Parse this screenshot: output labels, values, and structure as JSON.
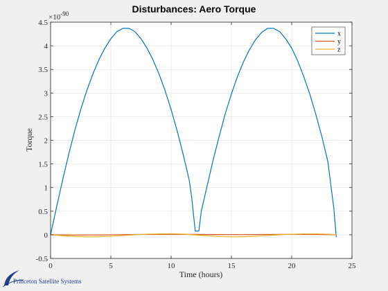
{
  "chart_data": {
    "type": "line",
    "title": "Disturbances: Aero Torque",
    "xlabel": "Time (hours)",
    "ylabel": "Torque",
    "y_exponent_label": "×10",
    "y_exponent_value": "-90",
    "xlim": [
      0,
      25
    ],
    "ylim": [
      -0.5,
      4.5
    ],
    "xticks": [
      0,
      5,
      10,
      15,
      20,
      25
    ],
    "yticks": [
      -0.5,
      0,
      0.5,
      1,
      1.5,
      2,
      2.5,
      3,
      3.5,
      4,
      4.5
    ],
    "xtick_labels": [
      "0",
      "5",
      "10",
      "15",
      "20",
      "25"
    ],
    "ytick_labels": [
      "-0.5",
      "0",
      "0.5",
      "1",
      "1.5",
      "2",
      "2.5",
      "3",
      "3.5",
      "4",
      "4.5"
    ],
    "grid": true,
    "legend_position": "top-right",
    "series": [
      {
        "name": "x",
        "color": "#0072bd",
        "x": [
          0,
          0.5,
          1,
          1.5,
          2,
          2.5,
          3,
          3.5,
          4,
          4.5,
          5,
          5.5,
          6,
          6.5,
          7,
          7.5,
          8,
          8.5,
          9,
          9.5,
          10,
          10.5,
          11,
          11.5,
          11.7,
          12.0,
          12.3,
          12.5,
          13,
          13.5,
          14,
          14.5,
          15,
          15.5,
          16,
          16.5,
          17,
          17.5,
          18,
          18.5,
          19,
          19.5,
          20,
          20.5,
          21,
          21.5,
          22,
          22.5,
          23,
          23.5,
          23.7
        ],
        "values": [
          0.0,
          0.59,
          1.16,
          1.7,
          2.2,
          2.65,
          3.05,
          3.4,
          3.7,
          3.95,
          4.15,
          4.3,
          4.37,
          4.37,
          4.3,
          4.15,
          3.95,
          3.7,
          3.4,
          3.05,
          2.65,
          2.2,
          1.7,
          1.16,
          0.8,
          0.08,
          0.08,
          0.5,
          1.05,
          1.6,
          2.1,
          2.57,
          2.98,
          3.35,
          3.66,
          3.92,
          4.13,
          4.28,
          4.37,
          4.37,
          4.3,
          4.15,
          3.95,
          3.68,
          3.35,
          2.98,
          2.55,
          2.08,
          1.55,
          0.55,
          -0.05
        ]
      },
      {
        "name": "y",
        "color": "#d95319",
        "x": [
          0,
          2,
          4,
          6,
          8,
          10,
          12,
          14,
          16,
          18,
          20,
          22,
          23.7
        ],
        "values": [
          0.0,
          -0.005,
          -0.003,
          0.003,
          0.008,
          0.01,
          0.008,
          0.004,
          0.003,
          0.006,
          0.01,
          0.008,
          0.0
        ]
      },
      {
        "name": "z",
        "color": "#edb120",
        "x": [
          0,
          1,
          2,
          3,
          4,
          5,
          6,
          7,
          8,
          9,
          10,
          11,
          11.8,
          13,
          14,
          15,
          16,
          17,
          18,
          19,
          20,
          21,
          22,
          23,
          23.7
        ],
        "values": [
          0.0,
          -0.02,
          -0.035,
          -0.042,
          -0.04,
          -0.03,
          -0.015,
          0.0,
          0.012,
          0.02,
          0.022,
          0.015,
          0.0,
          -0.02,
          -0.035,
          -0.042,
          -0.04,
          -0.03,
          -0.015,
          0.0,
          0.012,
          0.02,
          0.02,
          0.012,
          0.0
        ]
      }
    ]
  },
  "watermark_text": "Princeton Satellite Systems"
}
